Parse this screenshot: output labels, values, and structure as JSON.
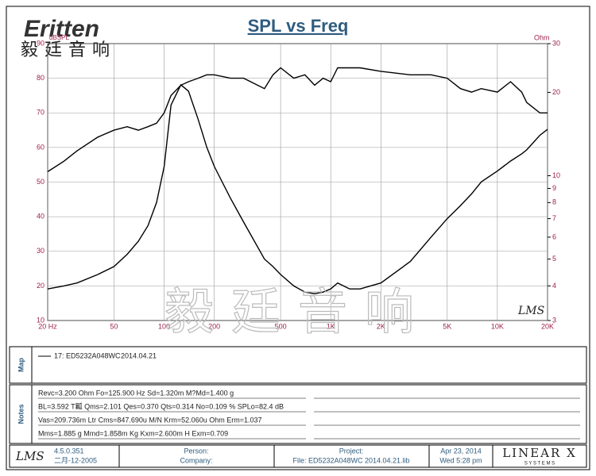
{
  "header": {
    "logo": "Eritten",
    "logo_cn": "毅廷音响"
  },
  "chart_data": {
    "type": "line",
    "title": "SPL vs Freq",
    "y_label": "dBSPL",
    "y2_label": "Ohm",
    "x": [
      20,
      25,
      30,
      40,
      50,
      60,
      70,
      80,
      90,
      100,
      110,
      126,
      140,
      160,
      180,
      200,
      250,
      300,
      400,
      450,
      500,
      600,
      700,
      800,
      900,
      1000,
      1100,
      1300,
      1500,
      2000,
      3000,
      4000,
      5000,
      6000,
      7000,
      8000,
      10000,
      12000,
      14000,
      15000,
      18000,
      20000
    ],
    "series": [
      {
        "color": "#000000",
        "values": [
          53,
          56,
          59,
          63,
          65,
          66,
          65,
          66,
          67,
          70,
          75,
          78,
          79,
          80,
          81,
          81,
          80,
          80,
          77,
          81,
          83,
          80,
          81,
          78,
          80,
          79,
          83,
          83,
          83,
          82,
          81,
          81,
          80,
          77,
          76,
          77,
          76,
          79,
          76,
          73,
          70,
          70
        ]
      },
      {
        "color": "#000000",
        "axis": "y2",
        "values": [
          3.9,
          4.0,
          4.1,
          4.4,
          4.7,
          5.2,
          5.8,
          6.6,
          8.0,
          10.8,
          18,
          21.3,
          20.2,
          16,
          12.7,
          10.8,
          8.3,
          6.8,
          5.0,
          4.7,
          4.4,
          4.0,
          3.8,
          3.75,
          3.8,
          3.9,
          4.1,
          3.9,
          3.9,
          4.1,
          4.9,
          6.0,
          7.0,
          7.8,
          8.6,
          9.5,
          10.4,
          11.3,
          12,
          12.4,
          14,
          14.7
        ]
      }
    ],
    "xlim": [
      20,
      20000
    ],
    "xlog": true,
    "xticks": [
      {
        "value": 20,
        "label": "20 Hz"
      },
      50,
      100,
      200,
      500,
      {
        "value": 1000,
        "label": "1K"
      },
      {
        "value": 2000,
        "label": "2K"
      },
      {
        "value": 5000,
        "label": "5K"
      },
      {
        "value": 10000,
        "label": "10K"
      },
      {
        "value": 20000,
        "label": "20K"
      }
    ],
    "ylim": [
      10,
      90
    ],
    "yticks": [
      10,
      20,
      30,
      40,
      50,
      60,
      70,
      80,
      90
    ],
    "y2lim": [
      3,
      30
    ],
    "y2log": true,
    "y2ticks": [
      3,
      4,
      5,
      6,
      7,
      8,
      9,
      10,
      20,
      30
    ],
    "grid": true,
    "watermark": "毅廷音响",
    "brand_mark": "LMS"
  },
  "map": {
    "label": "Map",
    "entry": "17: ED5232A048WC",
    "date": "2014.04.21"
  },
  "notes": {
    "label": "Notes",
    "lines": [
      "Revc=3.200 Ohm  Fo=125.900 Hz  Sd=1.320m M?Md=1.400 g",
      "BL=3.592 T瓤  Qms=2.101  Qes=0.370  Qts=0.314  No=0.109 %  SPLo=82.4 dB",
      "Vas=209.736m Ltr  Cms=847.690u M/N  Krm=52.060u Ohm  Erm=1.037",
      "Mms=1.885 g  Mmd=1.858m Kg  Kxm=2.600m H  Exm=0.709"
    ]
  },
  "footer": {
    "lms": "LMS",
    "version": "4.5.0.351",
    "build": "二月-12-2005",
    "person": "Person:",
    "company": "Company:",
    "project": "Project:",
    "file": "File: ED5232A048WC 2014.04.21.lib",
    "date": "Apr 23, 2014",
    "time": "Wed  5:28 pm",
    "vendor": "LINEAR X",
    "vendor_sub": "S Y S T E M S"
  }
}
